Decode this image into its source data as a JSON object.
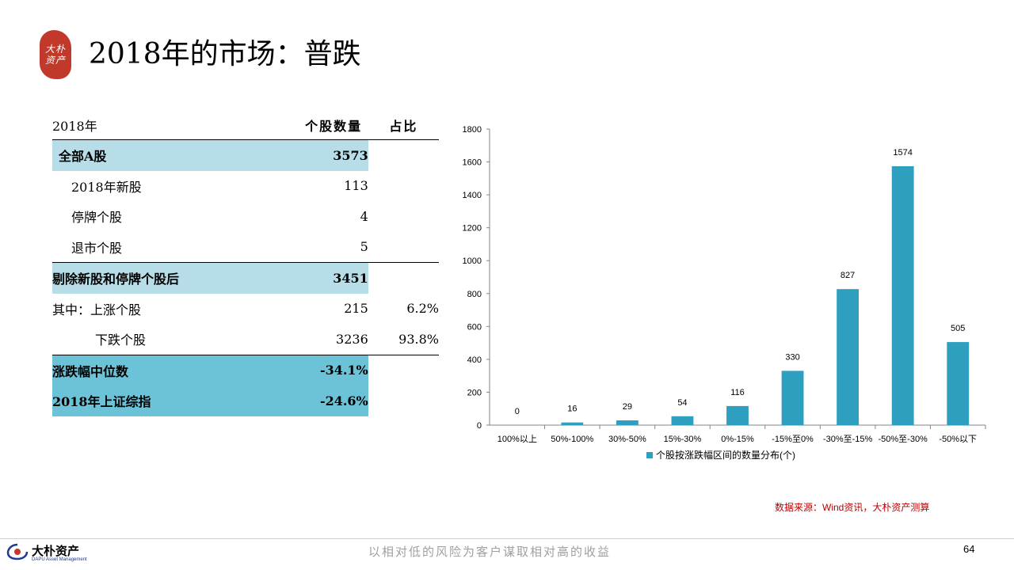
{
  "title": "2018年的市场：普跌",
  "logo_seal": [
    "大朴",
    "资产"
  ],
  "table": {
    "header": [
      "2018年",
      "个股数量",
      "占比"
    ],
    "rows": [
      {
        "label": "全部A股",
        "count": "3573",
        "pct": "",
        "style": "hl-light",
        "indent": "pad0b"
      },
      {
        "label": "2018年新股",
        "count": "113",
        "pct": "",
        "style": "",
        "indent": "pad1"
      },
      {
        "label": "停牌个股",
        "count": "4",
        "pct": "",
        "style": "",
        "indent": "pad1"
      },
      {
        "label": "退市个股",
        "count": "5",
        "pct": "",
        "style": "",
        "indent": "pad1"
      },
      {
        "label": "剔除新股和停牌个股后",
        "count": "3451",
        "pct": "",
        "style": "hl-light sep-top",
        "indent": ""
      },
      {
        "label": "其中：上涨个股",
        "count": "215",
        "pct": "6.2%",
        "style": "",
        "indent": ""
      },
      {
        "label": "下跌个股",
        "count": "3236",
        "pct": "93.8%",
        "style": "",
        "indent": "pad2"
      },
      {
        "label": "涨跌幅中位数",
        "count": "-34.1%",
        "pct": "",
        "style": "hl-dark sep-top",
        "indent": ""
      },
      {
        "label": "2018年上证综指",
        "count": "-24.6%",
        "pct": "",
        "style": "hl-dark",
        "indent": ""
      }
    ]
  },
  "chart_data": {
    "type": "bar",
    "categories": [
      "100%以上",
      "50%-100%",
      "30%-50%",
      "15%-30%",
      "0%-15%",
      "-15%至0%",
      "-30%至-15%",
      "-50%至-30%",
      "-50%以下"
    ],
    "series": [
      {
        "name": "个股按涨跌幅区间的数量分布(个)",
        "values": [
          0,
          16,
          29,
          54,
          116,
          330,
          827,
          1574,
          505
        ]
      }
    ],
    "ylim": [
      0,
      1800
    ],
    "yticks": [
      0,
      200,
      400,
      600,
      800,
      1000,
      1200,
      1400,
      1600,
      1800
    ],
    "legend_position": "bottom",
    "bar_color": "#2e9fbf",
    "grid": false
  },
  "source_note": "数据来源：Wind资讯，大朴资产测算",
  "footer": {
    "brand": "大朴资产",
    "brand_en": "DAPU Asset Management",
    "slogan": "以相对低的风险为客户谋取相对高的收益",
    "page_number": "64"
  }
}
